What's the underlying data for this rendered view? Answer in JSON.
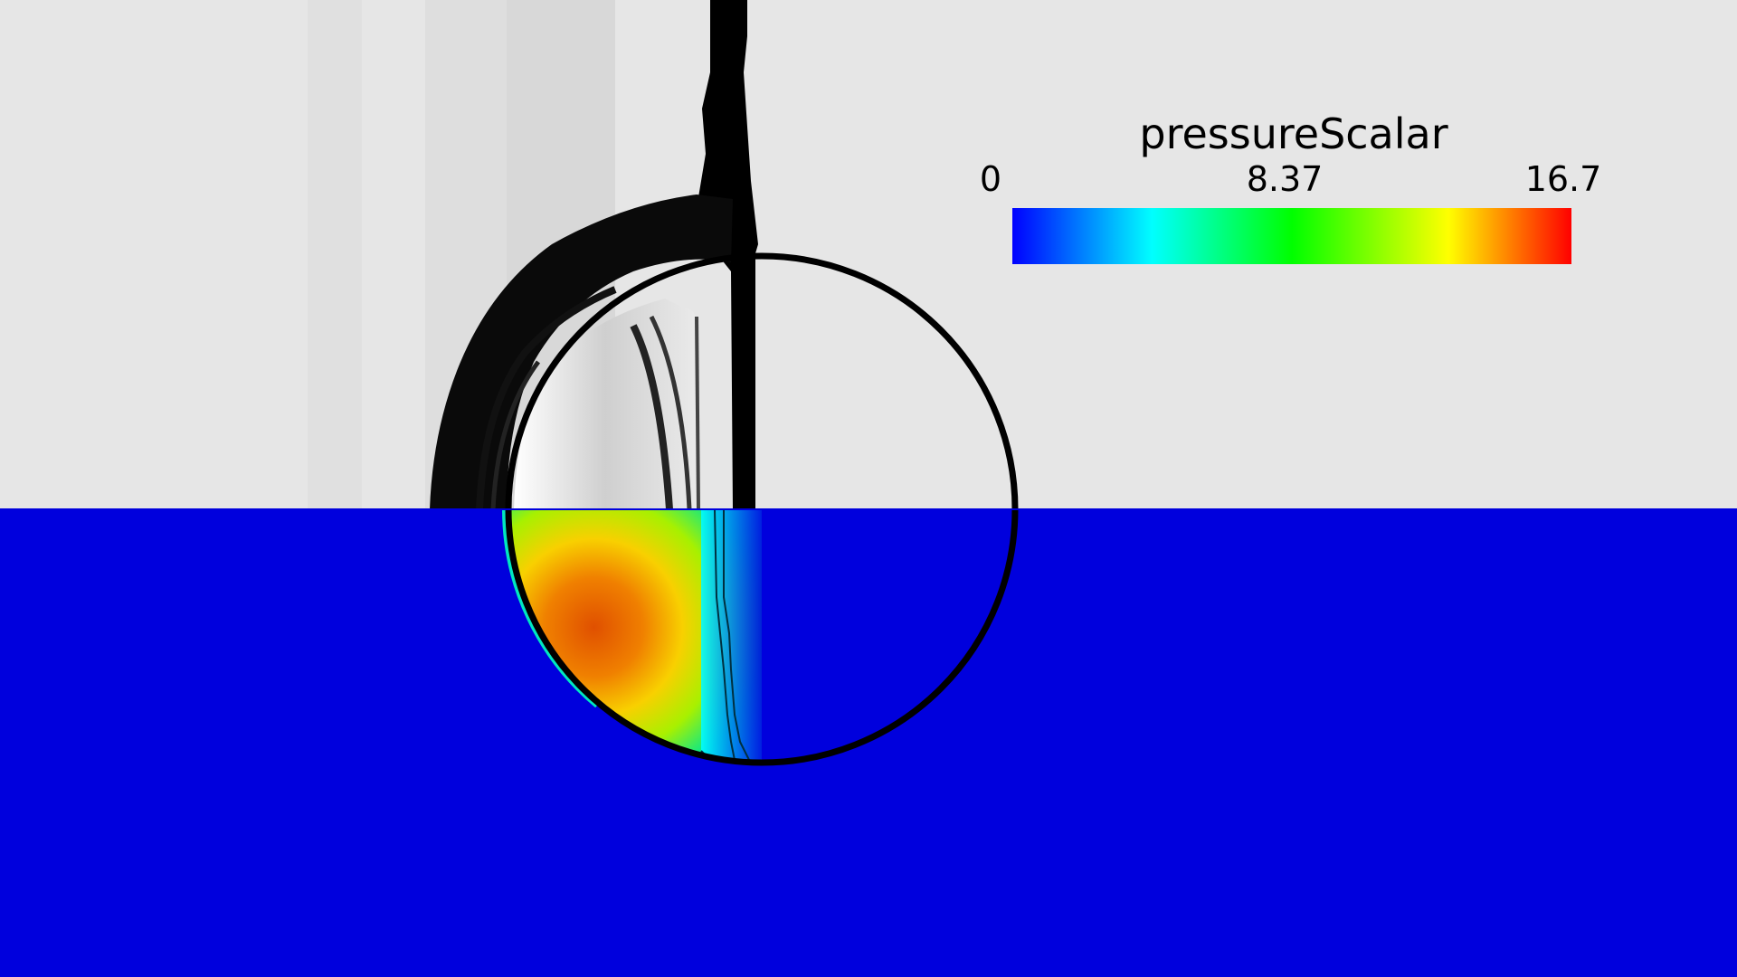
{
  "legend": {
    "title": "pressureScalar",
    "min_label": "0",
    "mid_label": "8.37",
    "max_label": "16.7",
    "colormap": [
      "#0000ff",
      "#00ffff",
      "#00ff00",
      "#ffff00",
      "#ff0000"
    ]
  },
  "colors": {
    "background_top": "#e6e6e6",
    "background_bottom": "#0000dd",
    "outline": "#000000"
  }
}
